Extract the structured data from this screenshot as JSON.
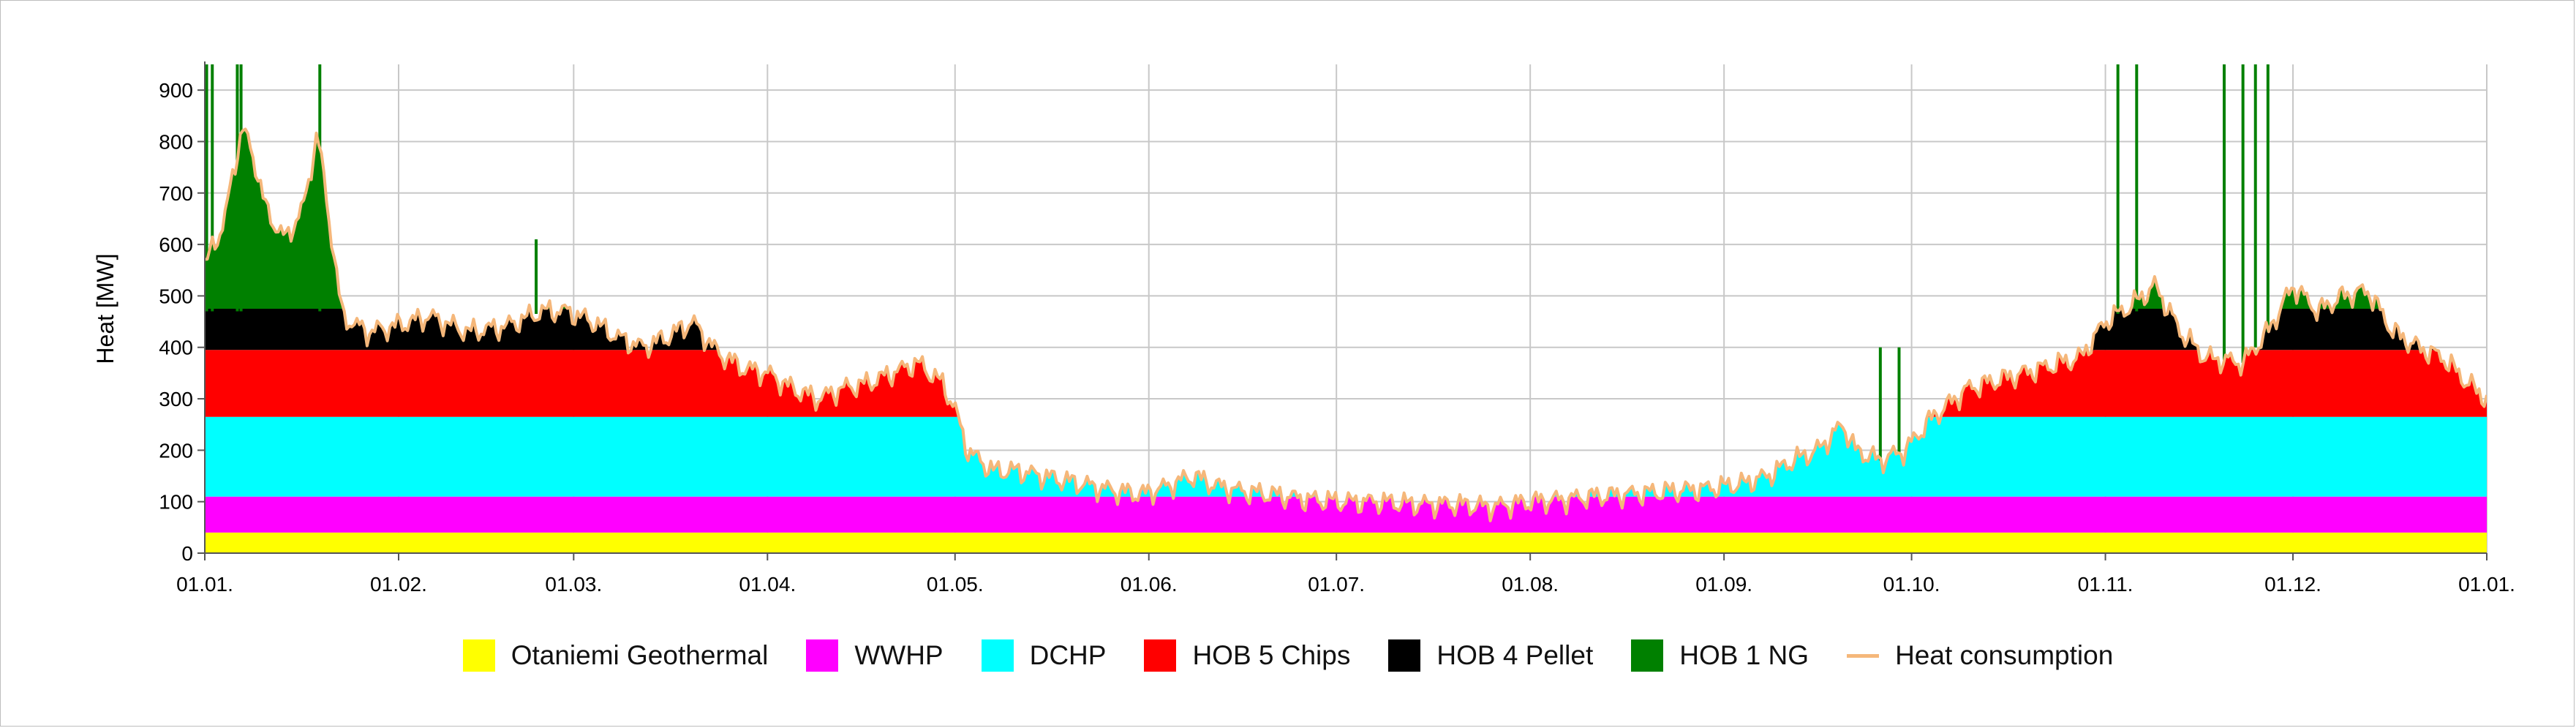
{
  "chart_data": {
    "type": "area",
    "title": "",
    "xlabel": "",
    "ylabel": "Heat [MW]",
    "ylim": [
      0,
      950
    ],
    "yticks": [
      0,
      100,
      200,
      300,
      400,
      500,
      600,
      700,
      800,
      900
    ],
    "x_ticks": [
      "01.01.",
      "01.02.",
      "01.03.",
      "01.04.",
      "01.05.",
      "01.06.",
      "01.07.",
      "01.08.",
      "01.09.",
      "01.10.",
      "01.11.",
      "01.12.",
      "01.01."
    ],
    "x_tick_days": [
      0,
      31,
      59,
      90,
      120,
      151,
      181,
      212,
      243,
      273,
      304,
      334,
      365
    ],
    "grid": true,
    "legend_position": "bottom",
    "series": [
      {
        "name": "Otaniemi Geothermal",
        "color": "#ffff00",
        "capacity": 40
      },
      {
        "name": "WWHP",
        "color": "#ff00ff",
        "capacity": 70
      },
      {
        "name": "DCHP",
        "color": "#00ffff",
        "capacity": 155
      },
      {
        "name": "HOB 5 Chips",
        "color": "#ff0000",
        "capacity": 130
      },
      {
        "name": "HOB 4 Pellet",
        "color": "#000000",
        "capacity": 80
      },
      {
        "name": "HOB 1 NG",
        "color": "#008000",
        "capacity": 470
      }
    ],
    "heat_consumption": {
      "name": "Heat consumption",
      "color": "#f5b77a",
      "points": [
        [
          0,
          560
        ],
        [
          3,
          640
        ],
        [
          6,
          830
        ],
        [
          8,
          760
        ],
        [
          10,
          660
        ],
        [
          13,
          610
        ],
        [
          16,
          680
        ],
        [
          18,
          820
        ],
        [
          20,
          640
        ],
        [
          22,
          460
        ],
        [
          26,
          430
        ],
        [
          30,
          440
        ],
        [
          36,
          460
        ],
        [
          42,
          430
        ],
        [
          48,
          440
        ],
        [
          54,
          470
        ],
        [
          58,
          470
        ],
        [
          62,
          450
        ],
        [
          66,
          420
        ],
        [
          70,
          400
        ],
        [
          74,
          420
        ],
        [
          78,
          450
        ],
        [
          82,
          390
        ],
        [
          86,
          360
        ],
        [
          90,
          350
        ],
        [
          94,
          320
        ],
        [
          98,
          300
        ],
        [
          102,
          320
        ],
        [
          106,
          330
        ],
        [
          110,
          350
        ],
        [
          114,
          370
        ],
        [
          118,
          330
        ],
        [
          120,
          280
        ],
        [
          122,
          200
        ],
        [
          126,
          160
        ],
        [
          130,
          160
        ],
        [
          134,
          150
        ],
        [
          138,
          140
        ],
        [
          142,
          130
        ],
        [
          146,
          120
        ],
        [
          150,
          115
        ],
        [
          154,
          130
        ],
        [
          158,
          150
        ],
        [
          162,
          130
        ],
        [
          166,
          120
        ],
        [
          170,
          115
        ],
        [
          176,
          105
        ],
        [
          182,
          100
        ],
        [
          188,
          100
        ],
        [
          194,
          95
        ],
        [
          200,
          95
        ],
        [
          206,
          90
        ],
        [
          212,
          100
        ],
        [
          218,
          105
        ],
        [
          222,
          110
        ],
        [
          228,
          115
        ],
        [
          234,
          120
        ],
        [
          240,
          125
        ],
        [
          246,
          135
        ],
        [
          250,
          150
        ],
        [
          254,
          180
        ],
        [
          258,
          200
        ],
        [
          262,
          250
        ],
        [
          264,
          200
        ],
        [
          268,
          180
        ],
        [
          272,
          200
        ],
        [
          276,
          260
        ],
        [
          282,
          320
        ],
        [
          288,
          340
        ],
        [
          294,
          360
        ],
        [
          300,
          380
        ],
        [
          304,
          450
        ],
        [
          308,
          480
        ],
        [
          312,
          520
        ],
        [
          316,
          430
        ],
        [
          320,
          380
        ],
        [
          326,
          370
        ],
        [
          330,
          430
        ],
        [
          334,
          520
        ],
        [
          338,
          470
        ],
        [
          342,
          500
        ],
        [
          346,
          510
        ],
        [
          350,
          430
        ],
        [
          354,
          400
        ],
        [
          358,
          380
        ],
        [
          362,
          330
        ],
        [
          365,
          300
        ]
      ]
    },
    "ng_spikes": [
      [
        0.3,
        950
      ],
      [
        1.2,
        950
      ],
      [
        5.2,
        950
      ],
      [
        5.8,
        950
      ],
      [
        18.4,
        950
      ],
      [
        53,
        610
      ],
      [
        268,
        400
      ],
      [
        271,
        400
      ],
      [
        306,
        950
      ],
      [
        309,
        950
      ],
      [
        323,
        950
      ],
      [
        326,
        950
      ],
      [
        328,
        950
      ],
      [
        330,
        950
      ]
    ]
  }
}
